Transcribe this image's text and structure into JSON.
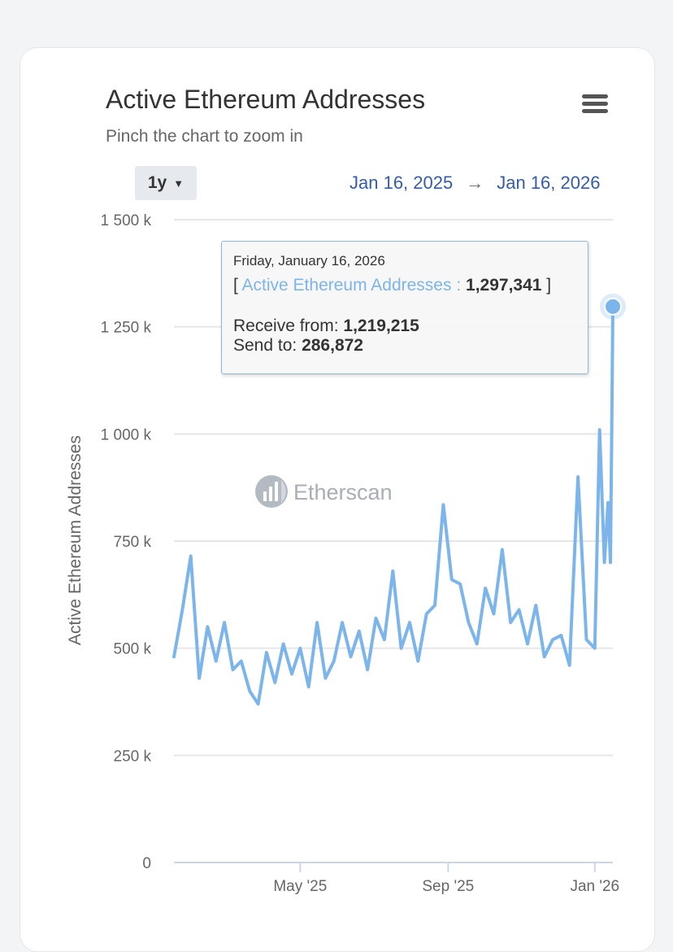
{
  "header": {
    "title": "Active Ethereum Addresses",
    "subtitle": "Pinch the chart to zoom in",
    "menu_icon": "hamburger-menu-icon"
  },
  "range_selector": {
    "selected": "1y",
    "caret": "▼",
    "from": "Jan 16, 2025",
    "arrow": "→",
    "to": "Jan 16, 2026"
  },
  "watermark": {
    "text": "Etherscan",
    "icon": "etherscan-logo-icon"
  },
  "tooltip": {
    "date": "Friday, January 16, 2026",
    "series_open": "[",
    "series_name": "Active Ethereum Addresses :",
    "series_value": "1,297,341",
    "series_close": "]",
    "receive_label": "Receive from:",
    "receive_value": "1,219,215",
    "send_label": "Send to:",
    "send_value": "286,872"
  },
  "colors": {
    "line": "#7cb5ec",
    "link": "#335cad",
    "grid": "#e6e6e6",
    "tooltip_border": "#90b6e3"
  },
  "chart_data": {
    "type": "line",
    "title": "Active Ethereum Addresses",
    "ylabel": "Active Ethereum Addresses",
    "xlabel": "",
    "ylim": [
      0,
      1500000
    ],
    "y_ticks": [
      0,
      250000,
      500000,
      750000,
      1000000,
      1250000,
      1500000
    ],
    "y_tick_labels": [
      "0",
      "250 k",
      "500 k",
      "750 k",
      "1 000 k",
      "1 250 k",
      "1 500 k"
    ],
    "x_ticks": [
      {
        "label": "May '25",
        "date": "2025-05-01"
      },
      {
        "label": "Sep '25",
        "date": "2025-09-01"
      },
      {
        "label": "Jan '26",
        "date": "2026-01-01"
      }
    ],
    "x_range": [
      "2025-01-16",
      "2026-01-16"
    ],
    "grid": true,
    "series": [
      {
        "name": "Active Ethereum Addresses",
        "x": [
          "2025-01-16",
          "2025-01-23",
          "2025-01-30",
          "2025-02-06",
          "2025-02-13",
          "2025-02-20",
          "2025-02-27",
          "2025-03-06",
          "2025-03-13",
          "2025-03-20",
          "2025-03-27",
          "2025-04-03",
          "2025-04-10",
          "2025-04-17",
          "2025-04-24",
          "2025-05-01",
          "2025-05-08",
          "2025-05-15",
          "2025-05-22",
          "2025-05-29",
          "2025-06-05",
          "2025-06-12",
          "2025-06-19",
          "2025-06-26",
          "2025-07-03",
          "2025-07-10",
          "2025-07-17",
          "2025-07-24",
          "2025-07-31",
          "2025-08-07",
          "2025-08-14",
          "2025-08-21",
          "2025-08-28",
          "2025-09-04",
          "2025-09-11",
          "2025-09-18",
          "2025-09-25",
          "2025-10-02",
          "2025-10-09",
          "2025-10-16",
          "2025-10-23",
          "2025-10-30",
          "2025-11-06",
          "2025-11-13",
          "2025-11-20",
          "2025-11-27",
          "2025-12-04",
          "2025-12-11",
          "2025-12-18",
          "2025-12-25",
          "2026-01-01",
          "2026-01-05",
          "2026-01-09",
          "2026-01-12",
          "2026-01-14",
          "2026-01-15",
          "2026-01-16"
        ],
        "values": [
          480000,
          590000,
          715000,
          430000,
          550000,
          470000,
          560000,
          450000,
          470000,
          400000,
          370000,
          490000,
          420000,
          510000,
          440000,
          500000,
          410000,
          560000,
          430000,
          470000,
          560000,
          480000,
          540000,
          450000,
          570000,
          520000,
          680000,
          500000,
          560000,
          470000,
          580000,
          600000,
          835000,
          660000,
          650000,
          560000,
          510000,
          640000,
          580000,
          730000,
          560000,
          590000,
          510000,
          600000,
          480000,
          520000,
          530000,
          460000,
          900000,
          520000,
          500000,
          1010000,
          700000,
          840000,
          700000,
          980000,
          1297341
        ]
      }
    ]
  }
}
